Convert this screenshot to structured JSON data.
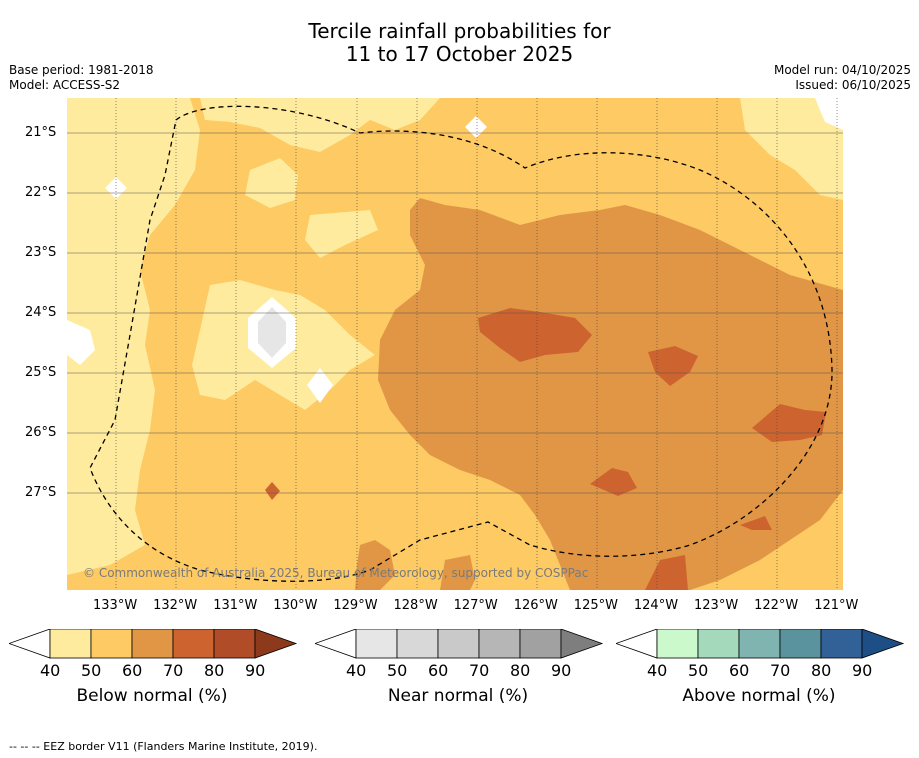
{
  "title_line1": "Tercile rainfall probabilities for",
  "title_line2": "11 to 17 October 2025",
  "base_period": "Base period: 1981-2018",
  "model": "Model: ACCESS-S2",
  "model_run": "Model run: 04/10/2025",
  "issued": "Issued: 06/10/2025",
  "lat_labels": [
    "21°S",
    "22°S",
    "23°S",
    "24°S",
    "25°S",
    "26°S",
    "27°S"
  ],
  "lon_labels": [
    "133°W",
    "132°W",
    "131°W",
    "130°W",
    "129°W",
    "128°W",
    "127°W",
    "126°W",
    "125°W",
    "124°W",
    "123°W",
    "122°W",
    "121°W"
  ],
  "credit": "© Commonwealth of Australia 2025, Bureau of Meteorology, supported by COSPPac",
  "colorbars": [
    {
      "label": "Below normal (%)",
      "ticks": [
        "40",
        "50",
        "60",
        "70",
        "80",
        "90"
      ],
      "colors": [
        "#fff",
        "#feeb9d",
        "#fdca63",
        "#e09645",
        "#cd6430",
        "#b04d28",
        "#8d3a1c"
      ]
    },
    {
      "label": "Near normal (%)",
      "ticks": [
        "40",
        "50",
        "60",
        "70",
        "80",
        "90"
      ],
      "colors": [
        "#fff",
        "#e6e6e6",
        "#d8d8d8",
        "#c9c9c9",
        "#b6b6b6",
        "#a1a1a1",
        "#7e7e7e"
      ]
    },
    {
      "label": "Above normal (%)",
      "ticks": [
        "40",
        "50",
        "60",
        "70",
        "80",
        "90"
      ],
      "colors": [
        "#fff",
        "#ccf9cc",
        "#a4d9bc",
        "#80b4b0",
        "#5a929e",
        "#316196",
        "#1d4e85"
      ]
    }
  ],
  "footer": "-- -- -- EEZ border V11 (Flanders Marine Institute, 2019)."
}
